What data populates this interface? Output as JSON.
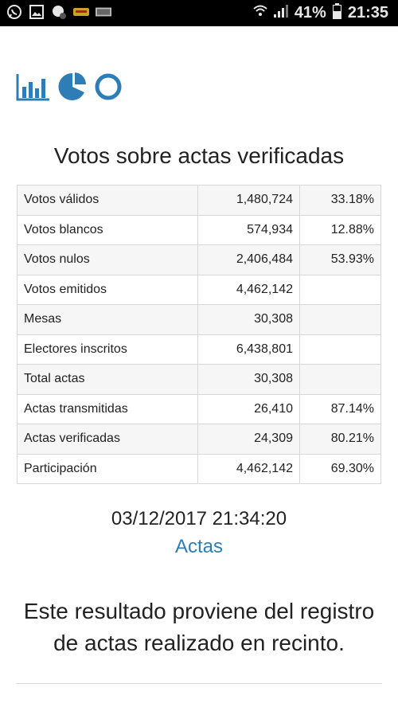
{
  "status_bar": {
    "battery": "41%",
    "time": "21:35",
    "icons": [
      "whatsapp-icon",
      "gallery-icon",
      "app-icon",
      "app-badge-icon",
      "app-badge-icon",
      "wifi-icon",
      "signal-icon",
      "battery-icon"
    ]
  },
  "chart_icons": [
    "bar-chart-icon",
    "pie-chart-icon",
    "donut-chart-icon"
  ],
  "title": "Votos sobre actas verificadas",
  "table": {
    "rows": [
      {
        "label": "Votos válidos",
        "value": "1,480,724",
        "percent": "33.18%"
      },
      {
        "label": "Votos blancos",
        "value": "574,934",
        "percent": "12.88%"
      },
      {
        "label": "Votos nulos",
        "value": "2,406,484",
        "percent": "53.93%"
      },
      {
        "label": "Votos emitidos",
        "value": "4,462,142",
        "percent": ""
      },
      {
        "label": "Mesas",
        "value": "30,308",
        "percent": ""
      },
      {
        "label": "Electores inscritos",
        "value": "6,438,801",
        "percent": ""
      },
      {
        "label": "Total actas",
        "value": "30,308",
        "percent": ""
      },
      {
        "label": "Actas transmitidas",
        "value": "26,410",
        "percent": "87.14%"
      },
      {
        "label": "Actas verificadas",
        "value": "24,309",
        "percent": "80.21%"
      },
      {
        "label": "Participación",
        "value": "4,462,142",
        "percent": "69.30%"
      }
    ]
  },
  "timestamp": "03/12/2017 21:34:20",
  "link_label": "Actas",
  "note": "Este resultado proviene del registro de actas realizado en recinto.",
  "colors": {
    "accent": "#2f7db6",
    "statusbar": "#000000"
  }
}
